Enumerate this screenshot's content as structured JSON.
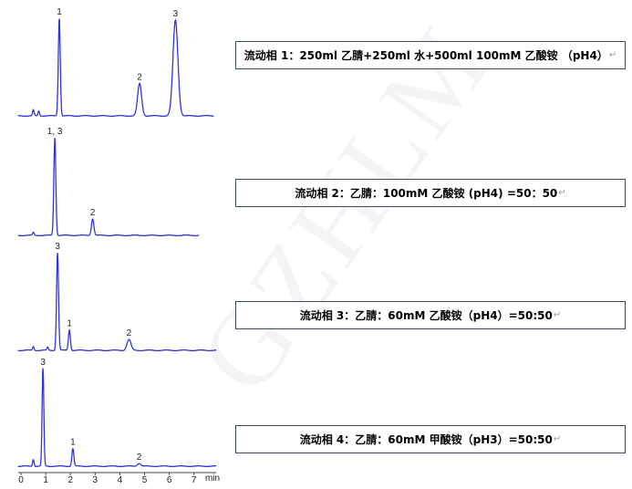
{
  "watermark": "GZHLM",
  "chart_data": [
    {
      "type": "line",
      "xlabel": "min",
      "xlim": [
        0,
        8
      ],
      "x_ticks": [
        "0",
        "1",
        "2",
        "3",
        "4",
        "5",
        "6",
        "7"
      ],
      "x_end": 7.8,
      "peaks": [
        {
          "t": 0.5,
          "h": 6,
          "w": 0.03,
          "label": ""
        },
        {
          "t": 0.72,
          "h": 5,
          "w": 0.03,
          "label": ""
        },
        {
          "t": 1.55,
          "h": 100,
          "w": 0.04,
          "label": "1"
        },
        {
          "t": 4.8,
          "h": 33,
          "w": 0.08,
          "label": "2"
        },
        {
          "t": 6.25,
          "h": 98,
          "w": 0.1,
          "label": "3"
        }
      ]
    },
    {
      "type": "line",
      "xlim": [
        0,
        8
      ],
      "x_end": 7.2,
      "peaks": [
        {
          "t": 0.5,
          "h": 3,
          "w": 0.03,
          "label": ""
        },
        {
          "t": 1.37,
          "h": 100,
          "w": 0.04,
          "label": "1, 3"
        },
        {
          "t": 2.9,
          "h": 17,
          "w": 0.05,
          "label": "2"
        }
      ]
    },
    {
      "type": "line",
      "xlim": [
        0,
        8
      ],
      "x_end": 7.9,
      "peaks": [
        {
          "t": 0.5,
          "h": 4,
          "w": 0.03,
          "label": ""
        },
        {
          "t": 1.08,
          "h": 3,
          "w": 0.03,
          "label": ""
        },
        {
          "t": 1.48,
          "h": 100,
          "w": 0.04,
          "label": "3"
        },
        {
          "t": 1.96,
          "h": 21,
          "w": 0.04,
          "label": "1"
        },
        {
          "t": 4.37,
          "h": 11,
          "w": 0.08,
          "label": "2"
        }
      ]
    },
    {
      "type": "line",
      "xlim": [
        0,
        8
      ],
      "x_end": 7.9,
      "peaks": [
        {
          "t": 0.5,
          "h": 7,
          "w": 0.03,
          "label": ""
        },
        {
          "t": 0.89,
          "h": 100,
          "w": 0.035,
          "label": "3"
        },
        {
          "t": 2.1,
          "h": 18,
          "w": 0.04,
          "label": "1"
        },
        {
          "t": 4.78,
          "h": 3,
          "w": 0.07,
          "label": "2"
        }
      ]
    }
  ],
  "trace_color": "#3333dd",
  "conditions": [
    "流动相 1：250ml 乙腈+250ml 水+500ml 100mM 乙酸铵 （pH4）",
    "流动相 2：乙腈：100mM 乙酸铵 (pH4) =50：50",
    "流动相 3：乙腈：60mM 乙酸铵（pH4）=50:50",
    "流动相 4：乙腈：60mM 甲酸铵（pH3）=50:50"
  ],
  "return_mark": "↵"
}
